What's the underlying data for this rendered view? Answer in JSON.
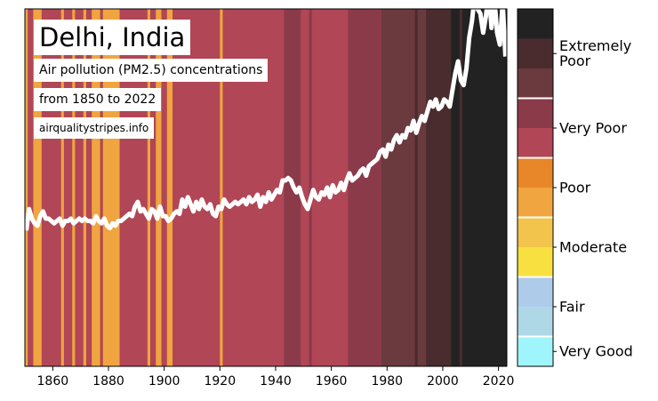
{
  "chart_data": {
    "type": "line",
    "title": "Delhi, India",
    "subtitle": [
      "Air pollution (PM2.5) concentrations",
      "from 1850 to 2022"
    ],
    "source": "airqualitystripes.info",
    "line_color": "#ffffff",
    "x": [
      1850,
      1851,
      1852,
      1853,
      1854,
      1855,
      1856,
      1857,
      1858,
      1859,
      1860,
      1861,
      1862,
      1863,
      1864,
      1865,
      1866,
      1867,
      1868,
      1869,
      1870,
      1871,
      1872,
      1873,
      1874,
      1875,
      1876,
      1877,
      1878,
      1879,
      1880,
      1881,
      1882,
      1883,
      1884,
      1885,
      1886,
      1887,
      1888,
      1889,
      1890,
      1891,
      1892,
      1893,
      1894,
      1895,
      1896,
      1897,
      1898,
      1899,
      1900,
      1901,
      1902,
      1903,
      1904,
      1905,
      1906,
      1907,
      1908,
      1909,
      1910,
      1911,
      1912,
      1913,
      1914,
      1915,
      1916,
      1917,
      1918,
      1919,
      1920,
      1921,
      1922,
      1923,
      1924,
      1925,
      1926,
      1927,
      1928,
      1929,
      1930,
      1931,
      1932,
      1933,
      1934,
      1935,
      1936,
      1937,
      1938,
      1939,
      1940,
      1941,
      1942,
      1943,
      1944,
      1945,
      1946,
      1947,
      1948,
      1949,
      1950,
      1951,
      1952,
      1953,
      1954,
      1955,
      1956,
      1957,
      1958,
      1959,
      1960,
      1961,
      1962,
      1963,
      1964,
      1965,
      1966,
      1967,
      1968,
      1969,
      1970,
      1971,
      1972,
      1973,
      1974,
      1975,
      1976,
      1977,
      1978,
      1979,
      1980,
      1981,
      1982,
      1983,
      1984,
      1985,
      1986,
      1987,
      1988,
      1989,
      1990,
      1991,
      1992,
      1993,
      1994,
      1995,
      1996,
      1997,
      1998,
      1999,
      2000,
      2001,
      2002,
      2003,
      2004,
      2005,
      2006,
      2007,
      2008,
      2009,
      2010,
      2011,
      2012,
      2013,
      2014,
      2015,
      2016,
      2017,
      2018,
      2019,
      2020,
      2021,
      2022
    ],
    "values": [
      57,
      66,
      62,
      60,
      59,
      63,
      65,
      62,
      62,
      61,
      60,
      61,
      62,
      59,
      61,
      61,
      62,
      60,
      61,
      62,
      61,
      62,
      61,
      61,
      60,
      63,
      61,
      60,
      62,
      59,
      58,
      60,
      59,
      61,
      61,
      62,
      63,
      64,
      63,
      67,
      69,
      65,
      66,
      64,
      62,
      66,
      65,
      62,
      67,
      63,
      63,
      61,
      62,
      64,
      65,
      64,
      70,
      67,
      71,
      68,
      65,
      69,
      66,
      70,
      67,
      66,
      68,
      64,
      63,
      67,
      66,
      70,
      68,
      67,
      68,
      69,
      68,
      69,
      70,
      68,
      71,
      69,
      70,
      72,
      67,
      71,
      69,
      73,
      70,
      72,
      74,
      73,
      78,
      78,
      79,
      78,
      75,
      73,
      75,
      71,
      68,
      66,
      70,
      74,
      71,
      70,
      73,
      72,
      75,
      71,
      76,
      73,
      74,
      77,
      74,
      78,
      81,
      78,
      79,
      80,
      82,
      83,
      80,
      84,
      85,
      86,
      87,
      90,
      91,
      88,
      93,
      91,
      95,
      97,
      94,
      97,
      96,
      100,
      99,
      103,
      98,
      102,
      105,
      103,
      107,
      111,
      109,
      112,
      108,
      109,
      112,
      111,
      109,
      116,
      123,
      128,
      120,
      118,
      125,
      138,
      145,
      156,
      150,
      148,
      140,
      147,
      158,
      142,
      155,
      140,
      135,
      153,
      130
    ],
    "stripe_colors": [
      "#f0a540",
      "#b04656",
      "#b04656",
      "#f0a540",
      "#f0a540",
      "#f0a540",
      "#b04656",
      "#b04656",
      "#b04656",
      "#b04656",
      "#b04656",
      "#b04656",
      "#b04656",
      "#f0a540",
      "#b04656",
      "#b04656",
      "#b04656",
      "#f0a540",
      "#b04656",
      "#b04656",
      "#b04656",
      "#f0a540",
      "#b04656",
      "#b04656",
      "#f0a540",
      "#f0a540",
      "#f0a540",
      "#b04656",
      "#f0a540",
      "#f0a540",
      "#f0a540",
      "#f0a540",
      "#f0a540",
      "#f0a540",
      "#b04656",
      "#b04656",
      "#b04656",
      "#b04656",
      "#b04656",
      "#b04656",
      "#b04656",
      "#b04656",
      "#b04656",
      "#b04656",
      "#f0a540",
      "#b04656",
      "#b04656",
      "#f0a540",
      "#f0a540",
      "#b04656",
      "#b04656",
      "#f0a540",
      "#f0a540",
      "#b04656",
      "#b04656",
      "#b04656",
      "#b04656",
      "#b04656",
      "#b04656",
      "#b04656",
      "#b04656",
      "#b04656",
      "#b04656",
      "#b04656",
      "#b04656",
      "#b04656",
      "#b04656",
      "#b04656",
      "#b04656",
      "#b04656",
      "#f0a540",
      "#b04656",
      "#b04656",
      "#b04656",
      "#b04656",
      "#b04656",
      "#b04656",
      "#b04656",
      "#b04656",
      "#b04656",
      "#b04656",
      "#b04656",
      "#b04656",
      "#b04656",
      "#b04656",
      "#b04656",
      "#b04656",
      "#b04656",
      "#b04656",
      "#b04656",
      "#b04656",
      "#b04656",
      "#b04656",
      "#8b3a4a",
      "#8b3a4a",
      "#8b3a4a",
      "#8b3a4a",
      "#8b3a4a",
      "#8b3a4a",
      "#b04656",
      "#b04656",
      "#b04656",
      "#8b3a4a",
      "#b04656",
      "#b04656",
      "#b04656",
      "#b04656",
      "#b04656",
      "#b04656",
      "#b04656",
      "#b04656",
      "#b04656",
      "#b04656",
      "#b04656",
      "#b04656",
      "#b04656",
      "#8b3a4a",
      "#8b3a4a",
      "#8b3a4a",
      "#8b3a4a",
      "#8b3a4a",
      "#8b3a4a",
      "#8b3a4a",
      "#8b3a4a",
      "#8b3a4a",
      "#8b3a4a",
      "#8b3a4a",
      "#8b3a4a",
      "#6b3a3e",
      "#6b3a3e",
      "#6b3a3e",
      "#6b3a3e",
      "#6b3a3e",
      "#6b3a3e",
      "#6b3a3e",
      "#6b3a3e",
      "#6b3a3e",
      "#6b3a3e",
      "#6b3a3e",
      "#6b3a3e",
      "#4a2c2e",
      "#6b3a3e",
      "#6b3a3e",
      "#6b3a3e",
      "#4a2c2e",
      "#4a2c2e",
      "#4a2c2e",
      "#4a2c2e",
      "#4a2c2e",
      "#4a2c2e",
      "#4a2c2e",
      "#4a2c2e",
      "#4a2c2e",
      "#222222",
      "#222222",
      "#222222",
      "#4a2c2e",
      "#222222",
      "#222222",
      "#222222",
      "#222222",
      "#222222",
      "#222222",
      "#222222",
      "#222222",
      "#222222",
      "#222222",
      "#222222",
      "#222222",
      "#222222",
      "#222222",
      "#222222",
      "#222222"
    ],
    "xlim": [
      1850,
      2023
    ],
    "xticks": [
      1860,
      1880,
      1900,
      1920,
      1940,
      1960,
      1980,
      2000,
      2020
    ],
    "ylim": [
      0,
      150
    ],
    "colorbar": [
      {
        "label": "Extremely Poor",
        "colors": [
          "#222222",
          "#4a2c2e",
          "#6b3a3e"
        ]
      },
      {
        "label": "Very Poor",
        "colors": [
          "#8b3a4a",
          "#b04656"
        ]
      },
      {
        "label": "Poor",
        "colors": [
          "#e8862a",
          "#f0a540"
        ]
      },
      {
        "label": "Moderate",
        "colors": [
          "#f2c44c",
          "#f8e040"
        ]
      },
      {
        "label": "Fair",
        "colors": [
          "#aecbea",
          "#aed8e6"
        ]
      },
      {
        "label": "Very Good",
        "colors": [
          "#9ff5fb"
        ]
      }
    ]
  }
}
